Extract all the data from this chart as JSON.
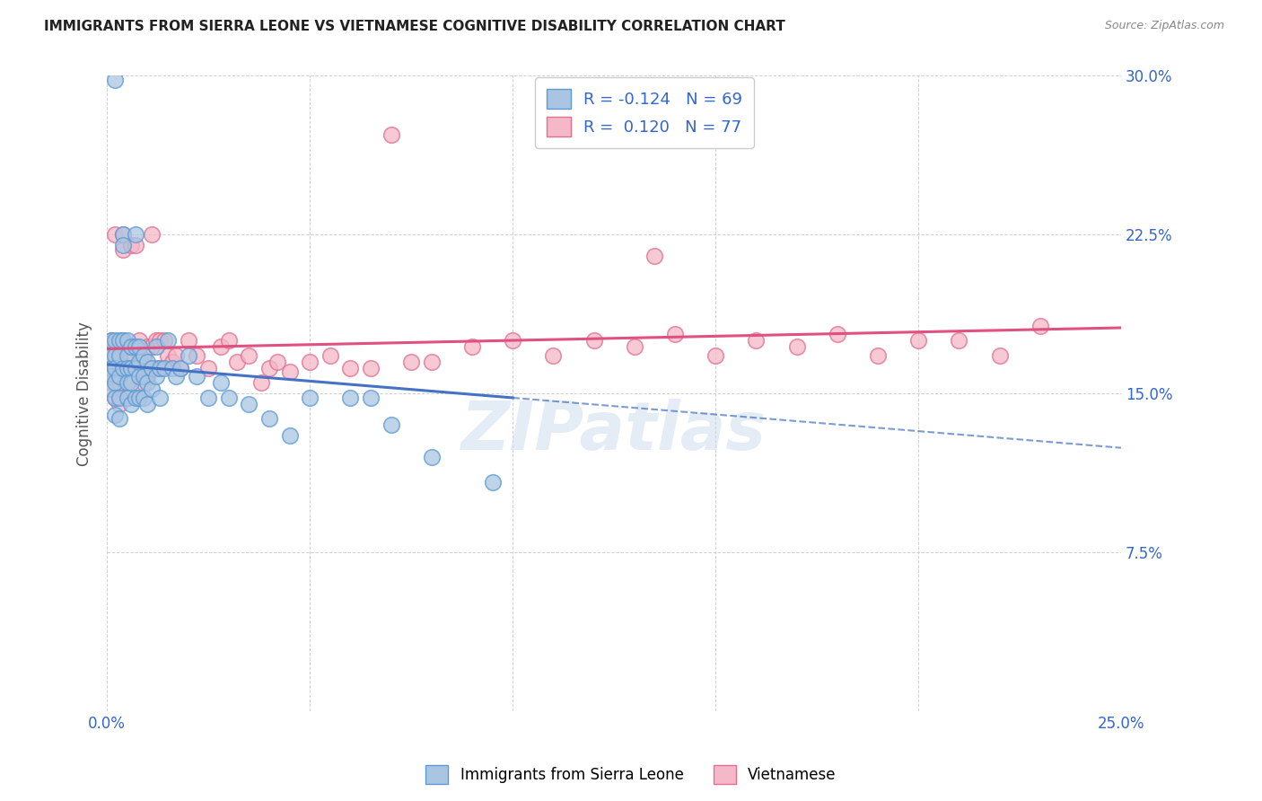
{
  "title": "IMMIGRANTS FROM SIERRA LEONE VS VIETNAMESE COGNITIVE DISABILITY CORRELATION CHART",
  "source": "Source: ZipAtlas.com",
  "ylabel_label": "Cognitive Disability",
  "x_min": 0.0,
  "x_max": 0.25,
  "y_min": 0.0,
  "y_max": 0.3,
  "x_ticks": [
    0.0,
    0.05,
    0.1,
    0.15,
    0.2,
    0.25
  ],
  "y_ticks": [
    0.0,
    0.075,
    0.15,
    0.225,
    0.3
  ],
  "y_tick_labels_right": [
    "",
    "7.5%",
    "15.0%",
    "22.5%",
    "30.0%"
  ],
  "sierra_leone_color": "#aac5e2",
  "sierra_leone_edge": "#5b9bd5",
  "vietnamese_color": "#f4b8c8",
  "vietnamese_edge": "#e07090",
  "trend_sierra_color": "#4472c4",
  "trend_vietnamese_color": "#e05080",
  "R_sierra": -0.124,
  "N_sierra": 69,
  "R_vietnamese": 0.12,
  "N_vietnamese": 77,
  "legend_label_sierra": "Immigrants from Sierra Leone",
  "legend_label_vietnamese": "Vietnamese",
  "watermark": "ZIPatlas",
  "sierra_leone_x": [
    0.001,
    0.001,
    0.001,
    0.001,
    0.001,
    0.002,
    0.002,
    0.002,
    0.002,
    0.002,
    0.002,
    0.002,
    0.003,
    0.003,
    0.003,
    0.003,
    0.003,
    0.004,
    0.004,
    0.004,
    0.004,
    0.005,
    0.005,
    0.005,
    0.005,
    0.005,
    0.006,
    0.006,
    0.006,
    0.006,
    0.007,
    0.007,
    0.007,
    0.007,
    0.008,
    0.008,
    0.008,
    0.008,
    0.009,
    0.009,
    0.009,
    0.01,
    0.01,
    0.01,
    0.011,
    0.011,
    0.012,
    0.012,
    0.013,
    0.013,
    0.014,
    0.015,
    0.016,
    0.017,
    0.018,
    0.02,
    0.022,
    0.025,
    0.028,
    0.03,
    0.035,
    0.04,
    0.045,
    0.05,
    0.06,
    0.065,
    0.07,
    0.08,
    0.095
  ],
  "sierra_leone_y": [
    0.175,
    0.168,
    0.162,
    0.158,
    0.152,
    0.298,
    0.175,
    0.168,
    0.162,
    0.155,
    0.148,
    0.14,
    0.175,
    0.168,
    0.158,
    0.148,
    0.138,
    0.225,
    0.22,
    0.175,
    0.162,
    0.175,
    0.168,
    0.162,
    0.155,
    0.148,
    0.172,
    0.162,
    0.155,
    0.145,
    0.225,
    0.172,
    0.162,
    0.148,
    0.172,
    0.165,
    0.158,
    0.148,
    0.168,
    0.158,
    0.148,
    0.165,
    0.155,
    0.145,
    0.162,
    0.152,
    0.172,
    0.158,
    0.162,
    0.148,
    0.162,
    0.175,
    0.162,
    0.158,
    0.162,
    0.168,
    0.158,
    0.148,
    0.155,
    0.148,
    0.145,
    0.138,
    0.13,
    0.148,
    0.148,
    0.148,
    0.135,
    0.12,
    0.108
  ],
  "vietnamese_x": [
    0.001,
    0.001,
    0.001,
    0.001,
    0.002,
    0.002,
    0.002,
    0.002,
    0.003,
    0.003,
    0.003,
    0.003,
    0.004,
    0.004,
    0.004,
    0.005,
    0.005,
    0.005,
    0.005,
    0.006,
    0.006,
    0.006,
    0.007,
    0.007,
    0.007,
    0.008,
    0.008,
    0.008,
    0.009,
    0.009,
    0.01,
    0.01,
    0.011,
    0.011,
    0.012,
    0.012,
    0.013,
    0.013,
    0.014,
    0.015,
    0.016,
    0.017,
    0.018,
    0.02,
    0.022,
    0.025,
    0.028,
    0.03,
    0.032,
    0.035,
    0.038,
    0.04,
    0.042,
    0.045,
    0.05,
    0.055,
    0.06,
    0.065,
    0.07,
    0.075,
    0.08,
    0.09,
    0.1,
    0.11,
    0.12,
    0.13,
    0.14,
    0.15,
    0.16,
    0.17,
    0.18,
    0.19,
    0.2,
    0.21,
    0.22,
    0.23,
    0.135
  ],
  "vietnamese_y": [
    0.175,
    0.168,
    0.162,
    0.155,
    0.225,
    0.172,
    0.162,
    0.148,
    0.172,
    0.162,
    0.155,
    0.145,
    0.225,
    0.218,
    0.175,
    0.172,
    0.165,
    0.155,
    0.148,
    0.22,
    0.172,
    0.162,
    0.22,
    0.172,
    0.162,
    0.175,
    0.162,
    0.148,
    0.168,
    0.155,
    0.172,
    0.158,
    0.225,
    0.172,
    0.175,
    0.162,
    0.175,
    0.162,
    0.175,
    0.168,
    0.165,
    0.168,
    0.162,
    0.175,
    0.168,
    0.162,
    0.172,
    0.175,
    0.165,
    0.168,
    0.155,
    0.162,
    0.165,
    0.16,
    0.165,
    0.168,
    0.162,
    0.162,
    0.272,
    0.165,
    0.165,
    0.172,
    0.175,
    0.168,
    0.175,
    0.172,
    0.178,
    0.168,
    0.175,
    0.172,
    0.178,
    0.168,
    0.175,
    0.175,
    0.168,
    0.182,
    0.215
  ]
}
